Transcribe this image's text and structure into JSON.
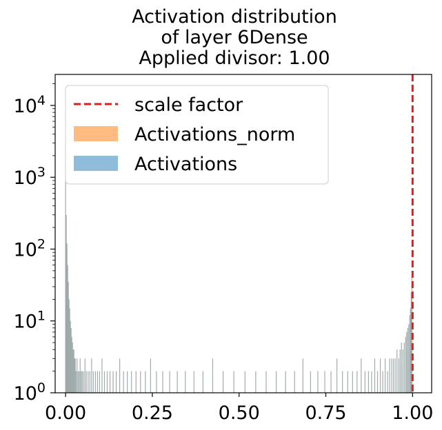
{
  "chart_data": {
    "type": "bar",
    "title_lines": [
      "Activation distribution",
      "of layer 6Dense",
      "Applied divisor: 1.00"
    ],
    "xlabel": "",
    "ylabel": "",
    "xlim": [
      -0.03,
      1.055
    ],
    "ylim": [
      1,
      27000
    ],
    "yscale": "log",
    "x_ticks": [
      {
        "value": 0.0,
        "label": "0.00"
      },
      {
        "value": 0.25,
        "label": "0.25"
      },
      {
        "value": 0.5,
        "label": "0.50"
      },
      {
        "value": 0.75,
        "label": "0.75"
      },
      {
        "value": 1.0,
        "label": "1.00"
      }
    ],
    "y_ticks": [
      {
        "value": 1,
        "base": "10",
        "exp": "0"
      },
      {
        "value": 10,
        "base": "10",
        "exp": "1"
      },
      {
        "value": 100,
        "base": "10",
        "exp": "2"
      },
      {
        "value": 1000,
        "base": "10",
        "exp": "3"
      },
      {
        "value": 10000,
        "base": "10",
        "exp": "4"
      }
    ],
    "scale_factor": 1.0,
    "legend": {
      "position": "upper-left",
      "entries": [
        {
          "label": "scale factor",
          "kind": "dashed-line",
          "color": "#e31a1c"
        },
        {
          "label": "Activations_norm",
          "kind": "patch",
          "color": "#ffbb80"
        },
        {
          "label": "Activations",
          "kind": "patch",
          "color": "#8fbcdb"
        }
      ]
    },
    "colors": {
      "overlap": "#8f9e9e",
      "norm": "#ffbb80",
      "raw": "#8fbcdb",
      "scale": "#e31a1c"
    },
    "series": [
      {
        "name": "Activations",
        "x": [
          0.0,
          0.002,
          0.004,
          0.006,
          0.008,
          0.01,
          0.012,
          0.014,
          0.016,
          0.018,
          0.02,
          0.022,
          0.024,
          0.026,
          0.028,
          0.03,
          0.033,
          0.036,
          0.039,
          0.042,
          0.045,
          0.048,
          0.052,
          0.056,
          0.06,
          0.065,
          0.07,
          0.075,
          0.08,
          0.086,
          0.092,
          0.098,
          0.105,
          0.112,
          0.12,
          0.128,
          0.137,
          0.146,
          0.156,
          0.167,
          0.178,
          0.19,
          0.203,
          0.216,
          0.23,
          0.245,
          0.262,
          0.28,
          0.3,
          0.322,
          0.345,
          0.37,
          0.396,
          0.424,
          0.454,
          0.485,
          0.517,
          0.548,
          0.578,
          0.607,
          0.634,
          0.66,
          0.684,
          0.706,
          0.727,
          0.747,
          0.765,
          0.782,
          0.798,
          0.813,
          0.827,
          0.84,
          0.852,
          0.863,
          0.873,
          0.882,
          0.891,
          0.899,
          0.907,
          0.914,
          0.921,
          0.928,
          0.934,
          0.94,
          0.945,
          0.95,
          0.955,
          0.96,
          0.964,
          0.968,
          0.972,
          0.976,
          0.98,
          0.983,
          0.986,
          0.989,
          0.992,
          0.994,
          0.996,
          0.998
        ],
        "values": [
          3000,
          300,
          120,
          60,
          35,
          20,
          15,
          10,
          8,
          6,
          5,
          4,
          4,
          3,
          3,
          2,
          3,
          2,
          2,
          3,
          2,
          2,
          2,
          3,
          2,
          2,
          2,
          3,
          2,
          2,
          2,
          2,
          3,
          2,
          2,
          2,
          2,
          2,
          3,
          2,
          2,
          2,
          2,
          2,
          2,
          3,
          2,
          2,
          2,
          2,
          2,
          2,
          2,
          3,
          2,
          2,
          2,
          2,
          2,
          2,
          2,
          2,
          3,
          2,
          2,
          2,
          2,
          3,
          2,
          2,
          2,
          2,
          3,
          2,
          2,
          2,
          3,
          2,
          3,
          2,
          3,
          2,
          3,
          3,
          3,
          3,
          4,
          3,
          4,
          5,
          4,
          5,
          6,
          7,
          8,
          9,
          12,
          15,
          25,
          40
        ]
      }
    ]
  }
}
